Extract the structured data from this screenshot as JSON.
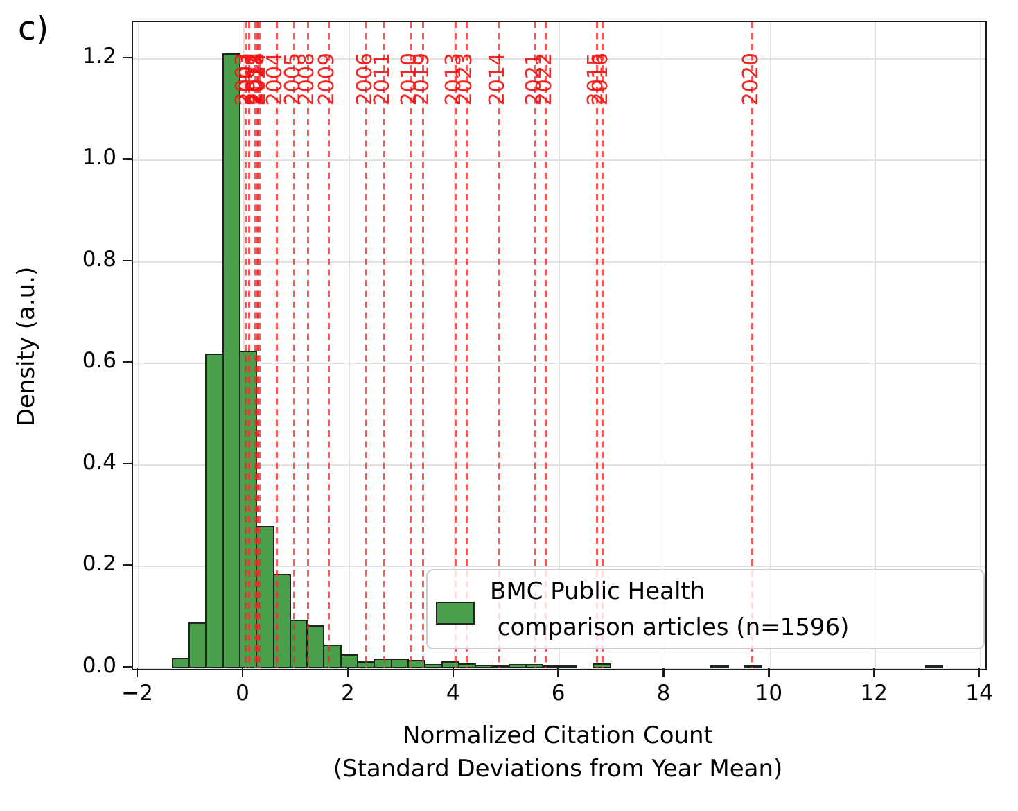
{
  "panel_label": "c)",
  "axes": {
    "xlabel_line1": "Normalized Citation Count",
    "xlabel_line2": "(Standard Deviations from Year Mean)",
    "ylabel": "Density (a.u.)",
    "x_tick_labels": [
      "−2",
      "0",
      "2",
      "4",
      "6",
      "8",
      "10",
      "12",
      "14"
    ],
    "x_tick_values": [
      -2,
      0,
      2,
      4,
      6,
      8,
      10,
      12,
      14
    ],
    "y_tick_labels": [
      "0.0",
      "0.2",
      "0.4",
      "0.6",
      "0.8",
      "1.0",
      "1.2"
    ],
    "y_tick_values": [
      0.0,
      0.2,
      0.4,
      0.6,
      0.8,
      1.0,
      1.2
    ]
  },
  "legend": {
    "line1": "BMC Public Health",
    "line2": " comparison articles (n=1596)",
    "swatch_color": "#4a9f4a"
  },
  "chart_data": {
    "type": "bar",
    "subtype": "histogram",
    "title": "",
    "xlabel": "Normalized Citation Count (Standard Deviations from Year Mean)",
    "ylabel": "Density (a.u.)",
    "xlim": [
      -2.107,
      14.09
    ],
    "ylim": [
      0,
      1.272
    ],
    "grid": true,
    "legend_position": "lower right inside",
    "bin_width": 0.32,
    "bins": [
      {
        "x": -1.36,
        "h": 0.02
      },
      {
        "x": -1.04,
        "h": 0.09
      },
      {
        "x": -0.72,
        "h": 0.62
      },
      {
        "x": -0.4,
        "h": 1.21
      },
      {
        "x": -0.08,
        "h": 0.625
      },
      {
        "x": 0.24,
        "h": 0.28
      },
      {
        "x": 0.56,
        "h": 0.185
      },
      {
        "x": 0.88,
        "h": 0.095
      },
      {
        "x": 1.2,
        "h": 0.085
      },
      {
        "x": 1.52,
        "h": 0.046
      },
      {
        "x": 1.84,
        "h": 0.027
      },
      {
        "x": 2.16,
        "h": 0.013
      },
      {
        "x": 2.48,
        "h": 0.019
      },
      {
        "x": 2.8,
        "h": 0.019
      },
      {
        "x": 3.12,
        "h": 0.016
      },
      {
        "x": 3.44,
        "h": 0.008
      },
      {
        "x": 3.76,
        "h": 0.014
      },
      {
        "x": 4.08,
        "h": 0.009
      },
      {
        "x": 4.4,
        "h": 0.007
      },
      {
        "x": 4.72,
        "h": 0.004
      },
      {
        "x": 5.04,
        "h": 0.008
      },
      {
        "x": 5.36,
        "h": 0.008
      },
      {
        "x": 5.68,
        "h": 0.004
      },
      {
        "x": 6.0,
        "h": 0.003
      },
      {
        "x": 6.64,
        "h": 0.01
      },
      {
        "x": 8.88,
        "h": 0.005
      },
      {
        "x": 9.52,
        "h": 0.005
      },
      {
        "x": 12.96,
        "h": 0.005
      }
    ],
    "vlines": [
      {
        "year": "2003",
        "x": 0.03
      },
      {
        "year": "2007",
        "x": 0.1
      },
      {
        "year": "2012",
        "x": 0.22
      },
      {
        "year": "2017",
        "x": 0.25
      },
      {
        "year": "2018",
        "x": 0.27
      },
      {
        "year": "2024",
        "x": 0.3
      },
      {
        "year": "2004",
        "x": 0.62
      },
      {
        "year": "2005",
        "x": 0.96
      },
      {
        "year": "2008",
        "x": 1.22
      },
      {
        "year": "2009",
        "x": 1.61
      },
      {
        "year": "2006",
        "x": 2.33
      },
      {
        "year": "2011",
        "x": 2.66
      },
      {
        "year": "2010",
        "x": 3.17
      },
      {
        "year": "2019",
        "x": 3.41
      },
      {
        "year": "2013",
        "x": 4.02
      },
      {
        "year": "2023",
        "x": 4.23
      },
      {
        "year": "2014",
        "x": 4.85
      },
      {
        "year": "2021",
        "x": 5.54
      },
      {
        "year": "2022",
        "x": 5.74
      },
      {
        "year": "2015",
        "x": 6.71
      },
      {
        "year": "2016",
        "x": 6.81
      },
      {
        "year": "2020",
        "x": 9.66
      }
    ],
    "series": [
      {
        "name": "BMC Public Health comparison articles (n=1596)",
        "color": "#4a9f4a"
      }
    ],
    "vline_color": "#ff2626",
    "bar_edge_color": "#1e241e"
  }
}
